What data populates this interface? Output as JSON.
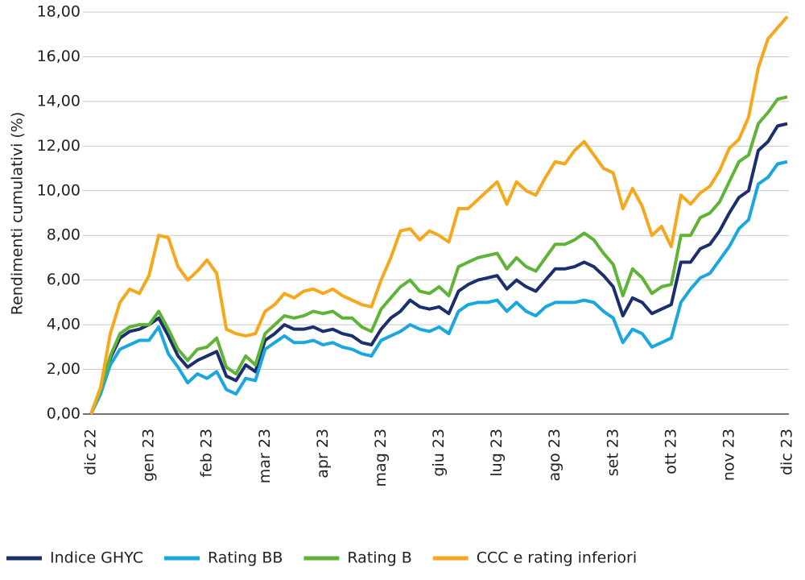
{
  "chart_data": {
    "type": "line",
    "ylabel": "Rendimenti cumulativi (%)",
    "categories": [
      "dic 22",
      null,
      null,
      null,
      null,
      null,
      "gen 23",
      null,
      null,
      null,
      null,
      null,
      "feb 23",
      null,
      null,
      null,
      null,
      null,
      "mar 23",
      null,
      null,
      null,
      null,
      null,
      "apr 23",
      null,
      null,
      null,
      null,
      null,
      "mag 23",
      null,
      null,
      null,
      null,
      null,
      "giu 23",
      null,
      null,
      null,
      null,
      null,
      "lug 23",
      null,
      null,
      null,
      null,
      null,
      "ago 23",
      null,
      null,
      null,
      null,
      null,
      "set 23",
      null,
      null,
      null,
      null,
      null,
      "ott 23",
      null,
      null,
      null,
      null,
      null,
      "nov 23",
      null,
      null,
      null,
      null,
      null,
      "dic 23"
    ],
    "series": [
      {
        "name": "Indice GHYC",
        "color": "#1b2f6e",
        "values": [
          0,
          1.0,
          2.5,
          3.4,
          3.7,
          3.8,
          4.0,
          4.3,
          3.5,
          2.6,
          2.1,
          2.4,
          2.6,
          2.8,
          1.7,
          1.5,
          2.2,
          1.9,
          3.3,
          3.6,
          4.0,
          3.8,
          3.8,
          3.9,
          3.7,
          3.8,
          3.6,
          3.5,
          3.2,
          3.1,
          3.8,
          4.3,
          4.6,
          5.1,
          4.8,
          4.7,
          4.8,
          4.5,
          5.5,
          5.8,
          6.0,
          6.1,
          6.2,
          5.6,
          6.0,
          5.7,
          5.5,
          6.0,
          6.5,
          6.5,
          6.6,
          6.8,
          6.6,
          6.2,
          5.7,
          4.4,
          5.2,
          5.0,
          4.5,
          4.7,
          4.9,
          6.8,
          6.8,
          7.4,
          7.6,
          8.2,
          9.0,
          9.7,
          10.0,
          11.8,
          12.2,
          12.9,
          13.0
        ]
      },
      {
        "name": "Rating BB",
        "color": "#1aa7e0",
        "values": [
          0,
          0.9,
          2.2,
          2.9,
          3.1,
          3.3,
          3.3,
          3.9,
          2.7,
          2.1,
          1.4,
          1.8,
          1.6,
          1.9,
          1.1,
          0.9,
          1.6,
          1.5,
          2.9,
          3.2,
          3.5,
          3.2,
          3.2,
          3.3,
          3.1,
          3.2,
          3.0,
          2.9,
          2.7,
          2.6,
          3.3,
          3.5,
          3.7,
          4.0,
          3.8,
          3.7,
          3.9,
          3.6,
          4.6,
          4.9,
          5.0,
          5.0,
          5.1,
          4.6,
          5.0,
          4.6,
          4.4,
          4.8,
          5.0,
          5.0,
          5.0,
          5.1,
          5.0,
          4.6,
          4.3,
          3.2,
          3.8,
          3.6,
          3.0,
          3.2,
          3.4,
          5.0,
          5.6,
          6.1,
          6.3,
          6.9,
          7.5,
          8.3,
          8.7,
          10.3,
          10.6,
          11.2,
          11.3
        ]
      },
      {
        "name": "Rating B",
        "color": "#5fb336",
        "values": [
          0,
          1.1,
          2.6,
          3.6,
          3.9,
          4.0,
          4.0,
          4.6,
          3.8,
          2.9,
          2.4,
          2.9,
          3.0,
          3.4,
          2.1,
          1.8,
          2.6,
          2.2,
          3.6,
          4.0,
          4.4,
          4.3,
          4.4,
          4.6,
          4.5,
          4.6,
          4.3,
          4.3,
          3.9,
          3.7,
          4.7,
          5.2,
          5.7,
          6.0,
          5.5,
          5.4,
          5.7,
          5.3,
          6.6,
          6.8,
          7.0,
          7.1,
          7.2,
          6.5,
          7.0,
          6.6,
          6.4,
          7.0,
          7.6,
          7.6,
          7.8,
          8.1,
          7.8,
          7.2,
          6.7,
          5.3,
          6.5,
          6.1,
          5.4,
          5.7,
          5.8,
          8.0,
          8.0,
          8.8,
          9.0,
          9.5,
          10.4,
          11.3,
          11.6,
          13.0,
          13.5,
          14.1,
          14.2
        ]
      },
      {
        "name": "CCC e rating inferiori",
        "color": "#f6a81c",
        "values": [
          0,
          1.2,
          3.6,
          5.0,
          5.6,
          5.4,
          6.2,
          8.0,
          7.9,
          6.6,
          6.0,
          6.4,
          6.9,
          6.3,
          3.8,
          3.6,
          3.5,
          3.6,
          4.6,
          4.9,
          5.4,
          5.2,
          5.5,
          5.6,
          5.4,
          5.6,
          5.3,
          5.1,
          4.9,
          4.8,
          6.0,
          7.0,
          8.2,
          8.3,
          7.8,
          8.2,
          8.0,
          7.7,
          9.2,
          9.2,
          9.6,
          10.0,
          10.4,
          9.4,
          10.4,
          10.0,
          9.8,
          10.6,
          11.3,
          11.2,
          11.8,
          12.2,
          11.6,
          11.0,
          10.8,
          9.2,
          10.1,
          9.3,
          8.0,
          8.4,
          7.5,
          9.8,
          9.4,
          9.9,
          10.2,
          10.9,
          11.9,
          12.3,
          13.3,
          15.5,
          16.8,
          17.3,
          17.8
        ]
      }
    ],
    "ylim": [
      0,
      18
    ],
    "yticks": [
      {
        "value": 0,
        "label": "0,00"
      },
      {
        "value": 2,
        "label": "2,00"
      },
      {
        "value": 4,
        "label": "4,00"
      },
      {
        "value": 6,
        "label": "6,00"
      },
      {
        "value": 8,
        "label": "8,00"
      },
      {
        "value": 10,
        "label": "10,00"
      },
      {
        "value": 12,
        "label": "12,00"
      },
      {
        "value": 14,
        "label": "14,00"
      },
      {
        "value": 16,
        "label": "16,00"
      },
      {
        "value": 18,
        "label": "18,00"
      }
    ],
    "grid": true,
    "legend": "bottom"
  }
}
